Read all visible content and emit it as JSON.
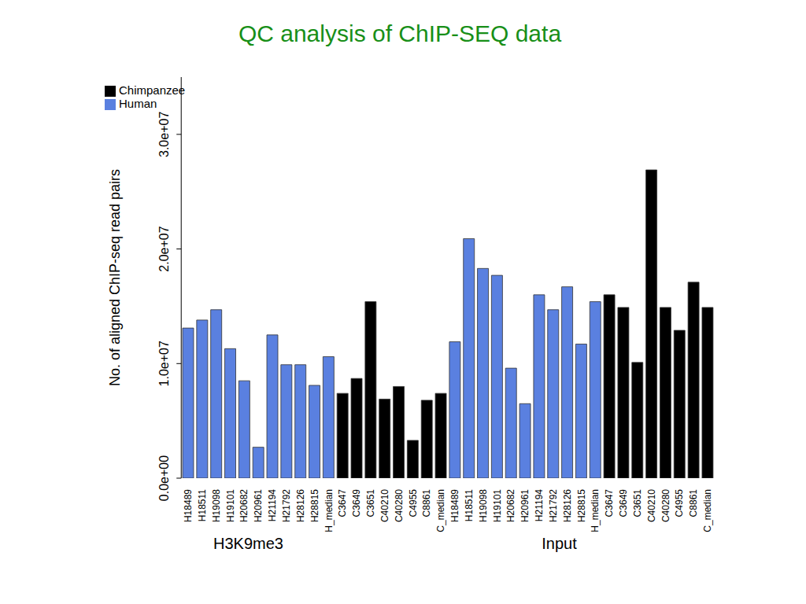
{
  "chart_data": {
    "type": "bar",
    "title": "QC analysis of ChIP-SEQ data",
    "y_label": "No. of aligned ChIP-seq read pairs",
    "groups": [
      "H3K9me3",
      "Input"
    ],
    "categories": [
      "H18489",
      "H18511",
      "H19098",
      "H19101",
      "H20682",
      "H20961",
      "H21194",
      "H21792",
      "H28126",
      "H28815",
      "H_median",
      "C3647",
      "C3649",
      "C3651",
      "C40210",
      "C40280",
      "C4955",
      "C8861",
      "C_median",
      "H18489",
      "H18511",
      "H19098",
      "H19101",
      "H20682",
      "H20961",
      "H21194",
      "H21792",
      "H28126",
      "H28815",
      "H_median",
      "C3647",
      "C3649",
      "C3651",
      "C40210",
      "C40280",
      "C4955",
      "C8861",
      "C_median"
    ],
    "series": [
      {
        "name": "Human",
        "color": "#5a80e0",
        "values": [
          13100000,
          13800000,
          14700000,
          11300000,
          8500000,
          2700000,
          12500000,
          9900000,
          9900000,
          8100000,
          10600000,
          null,
          null,
          null,
          null,
          null,
          null,
          null,
          null,
          11900000,
          20900000,
          18300000,
          17700000,
          9600000,
          6500000,
          16000000,
          14700000,
          16700000,
          11700000,
          15400000,
          null,
          null,
          null,
          null,
          null,
          null,
          null,
          null
        ]
      },
      {
        "name": "Chimpanzee",
        "color": "#000000",
        "values": [
          null,
          null,
          null,
          null,
          null,
          null,
          null,
          null,
          null,
          null,
          null,
          7400000,
          8700000,
          15400000,
          6900000,
          8000000,
          3300000,
          6800000,
          7400000,
          null,
          null,
          null,
          null,
          null,
          null,
          null,
          null,
          null,
          null,
          null,
          16000000,
          14900000,
          10100000,
          26900000,
          14900000,
          12900000,
          17100000,
          14900000
        ]
      }
    ],
    "ylim": [
      0,
      35000000
    ],
    "yticks": [
      {
        "value": 0,
        "label": "0.0e+00"
      },
      {
        "value": 10000000,
        "label": "1.0e+07"
      },
      {
        "value": 20000000,
        "label": "2.0e+07"
      },
      {
        "value": 30000000,
        "label": "3.0e+07"
      }
    ],
    "stacked": true,
    "grid": false,
    "legend": "upper left"
  }
}
